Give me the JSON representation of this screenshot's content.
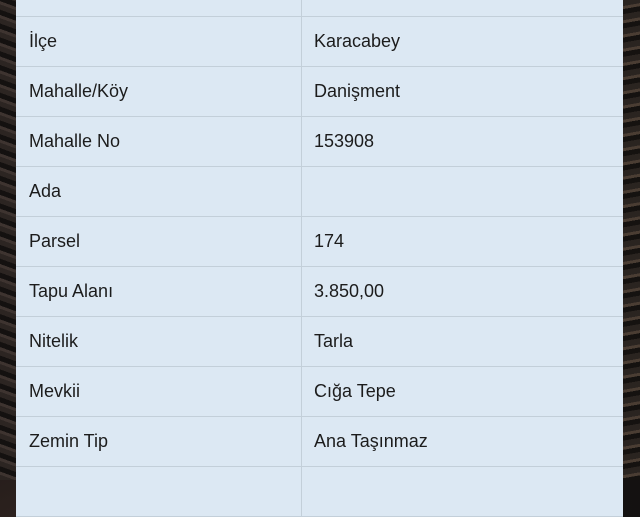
{
  "rows": [
    {
      "label": "",
      "value": ""
    },
    {
      "label": "İlçe",
      "value": "Karacabey"
    },
    {
      "label": "Mahalle/Köy",
      "value": "Danişment"
    },
    {
      "label": "Mahalle No",
      "value": "153908"
    },
    {
      "label": "Ada",
      "value": ""
    },
    {
      "label": "Parsel",
      "value": "174"
    },
    {
      "label": "Tapu Alanı",
      "value": "3.850,00"
    },
    {
      "label": "Nitelik",
      "value": "Tarla"
    },
    {
      "label": "Mevkii",
      "value": "Cığa Tepe"
    },
    {
      "label": "Zemin Tip",
      "value": "Ana Taşınmaz"
    },
    {
      "label": "",
      "value": ""
    }
  ]
}
